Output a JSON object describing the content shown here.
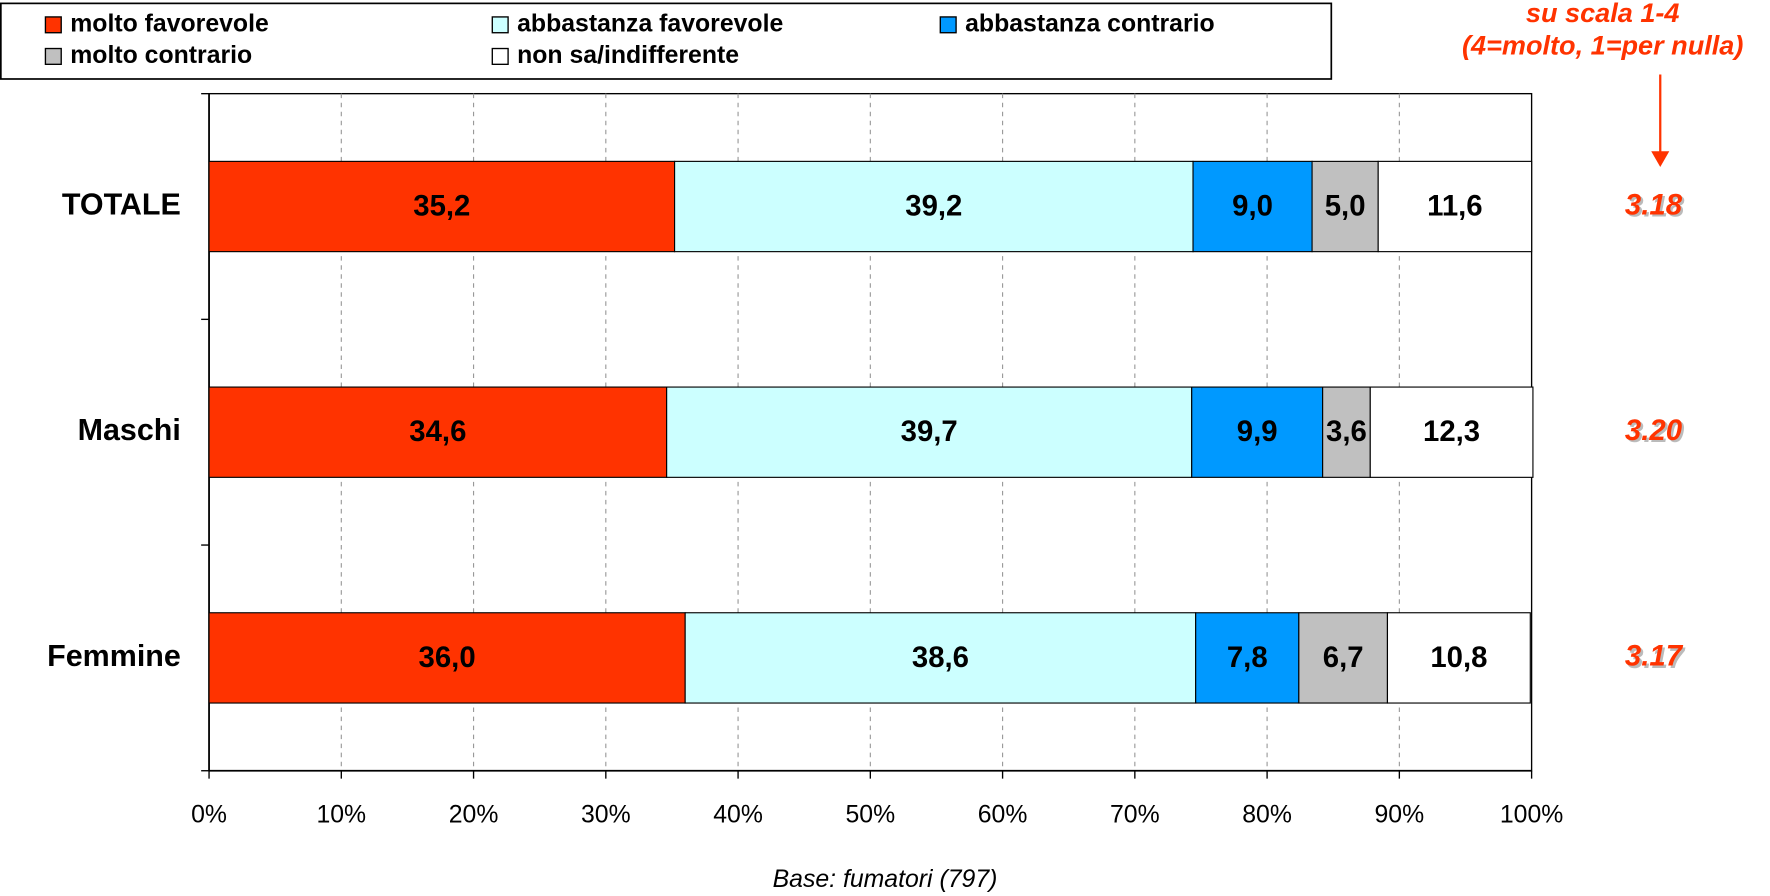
{
  "chart_data": {
    "type": "stacked-bar-horizontal",
    "categories": [
      "TOTALE",
      "Maschi",
      "Femmine"
    ],
    "series": [
      {
        "name": "molto favorevole",
        "color": "#ff3300",
        "values": [
          35.2,
          34.6,
          36.0
        ],
        "value_labels": [
          "35,2",
          "34,6",
          "36,0"
        ]
      },
      {
        "name": "abbastanza favorevole",
        "color": "#ccffff",
        "values": [
          39.2,
          39.7,
          38.6
        ],
        "value_labels": [
          "39,2",
          "39,7",
          "38,6"
        ]
      },
      {
        "name": "abbastanza contrario",
        "color": "#0099ff",
        "values": [
          9.0,
          9.9,
          7.8
        ],
        "value_labels": [
          "9,0",
          "9,9",
          "7,8"
        ]
      },
      {
        "name": "molto contrario",
        "color": "#c0c0c0",
        "values": [
          5.0,
          3.6,
          6.7
        ],
        "value_labels": [
          "5,0",
          "3,6",
          "6,7"
        ]
      },
      {
        "name": "non sa/indifferente",
        "color": "#ffffff",
        "values": [
          11.6,
          12.3,
          10.8
        ],
        "value_labels": [
          "11,6",
          "12,3",
          "10,8"
        ]
      }
    ],
    "xlim": [
      0,
      100
    ],
    "xticks": [
      {
        "value": 0,
        "label": "0%"
      },
      {
        "value": 10,
        "label": "10%"
      },
      {
        "value": 20,
        "label": "20%"
      },
      {
        "value": 30,
        "label": "30%"
      },
      {
        "value": 40,
        "label": "40%"
      },
      {
        "value": 50,
        "label": "50%"
      },
      {
        "value": 60,
        "label": "60%"
      },
      {
        "value": 70,
        "label": "70%"
      },
      {
        "value": 80,
        "label": "80%"
      },
      {
        "value": 90,
        "label": "90%"
      },
      {
        "value": 100,
        "label": "100%"
      }
    ],
    "grid": true,
    "legend": "top",
    "annotation": [
      "su scala 1-4",
      "(4=molto, 1=per nulla)"
    ],
    "scores": {
      "color": "#ff3300",
      "values": [
        3.18,
        3.2,
        3.17
      ],
      "value_labels": [
        "3.18",
        "3.20",
        "3.17"
      ]
    },
    "footnote": "Base: fumatori (797)"
  }
}
